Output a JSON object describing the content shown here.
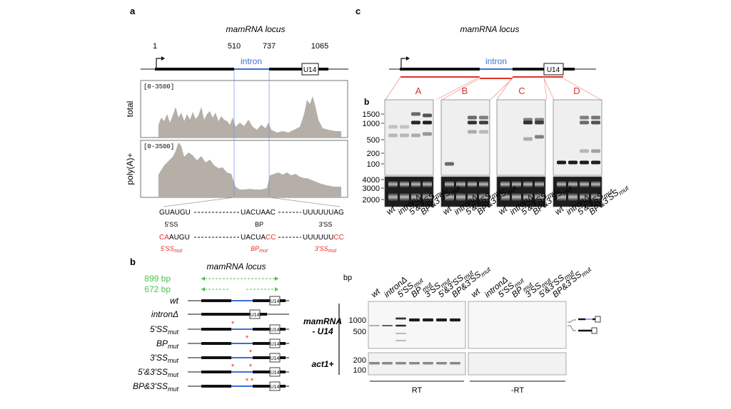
{
  "panel_a": {
    "letter": "a",
    "title": "mamRNA locus",
    "positions": [
      "1",
      "510",
      "737",
      "1065"
    ],
    "intron_label": "intron",
    "u14_label": "U14",
    "track1_range": "[0-3500]",
    "track1_label": "total",
    "track2_range": "[0-3500]",
    "track2_label": "poly(A)+",
    "seq_row1": [
      "GUAUGU",
      "UACUAAC",
      "UUUUUUAG"
    ],
    "seq_row1_labels": [
      "5'SS",
      "BP",
      "3'SS"
    ],
    "seq_row2_black": [
      "AUGU",
      "UACUA",
      "UUUUUU"
    ],
    "seq_row2_red": [
      "CA",
      "CC",
      "CC"
    ],
    "mut_labels": [
      [
        "5'SS",
        "mut"
      ],
      [
        "BP",
        "mut"
      ],
      [
        "3'SS",
        "mut"
      ]
    ]
  },
  "panel_b": {
    "letter": "b",
    "title": "mamRNA locus",
    "primer1": "899 bp",
    "primer2": "672 bp",
    "u14_label": "U14",
    "strains": [
      {
        "main": "wt",
        "sub": ""
      },
      {
        "main": "intronΔ",
        "sub": ""
      },
      {
        "main": "5'SS",
        "sub": "mut"
      },
      {
        "main": "BP",
        "sub": "mut"
      },
      {
        "main": "3'SS",
        "sub": "mut"
      },
      {
        "main": "5'&3'SS",
        "sub": "mut"
      },
      {
        "main": "BP&3'SS",
        "sub": "mut"
      }
    ],
    "gel_lanes": [
      {
        "main": "wt",
        "sub": ""
      },
      {
        "main": "intronΔ",
        "sub": ""
      },
      {
        "main": "5'SS",
        "sub": "mut"
      },
      {
        "main": "BP",
        "sub": "mut"
      },
      {
        "main": "3'SS",
        "sub": "mut"
      },
      {
        "main": "5'&3'SS",
        "sub": "mut"
      },
      {
        "main": "BP&3'SS",
        "sub": "mut"
      }
    ],
    "bp_label": "bp",
    "gel1_label_line1": "mamRNA",
    "gel1_label_line2": "- U14",
    "gel1_markers": [
      "1000",
      "500"
    ],
    "gel2_label": "act1+",
    "gel2_markers": [
      "200",
      "100"
    ],
    "rt_label": "RT",
    "nort_label": "-RT"
  },
  "panel_c": {
    "letter": "c",
    "title": "mamRNA locus",
    "intron_label": "intron",
    "u14_label": "U14",
    "probes": [
      "A",
      "B",
      "C",
      "D"
    ],
    "b_label": "b",
    "markers_top": [
      "1500",
      "1000",
      "500",
      "200",
      "100"
    ],
    "markers_bottom": [
      "4000",
      "3000",
      "2000"
    ],
    "lanes": [
      {
        "main": "wt",
        "sub": ""
      },
      {
        "main": "intronΔ",
        "sub": ""
      },
      {
        "main": "5'&3'SS",
        "sub": "mut"
      },
      {
        "main": "BP&3'SS",
        "sub": "mut"
      }
    ]
  }
}
